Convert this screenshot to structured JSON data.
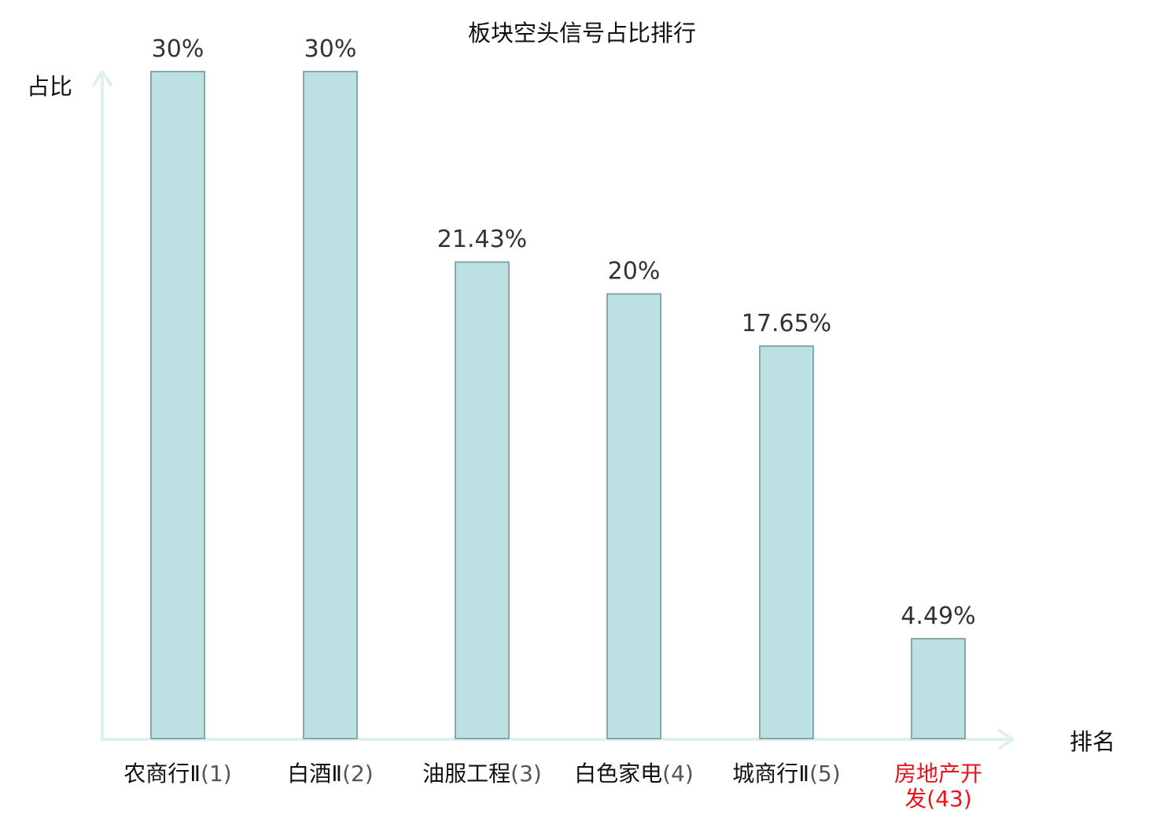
{
  "chart_data": {
    "type": "bar",
    "title": "板块空头信号占比排行",
    "ylabel": "占比",
    "xlabel": "排名",
    "ylim": [
      0,
      30
    ],
    "grid": false,
    "categories": [
      {
        "name": "农商行Ⅱ",
        "rank": "(1)",
        "highlight": false
      },
      {
        "name": "白酒Ⅱ",
        "rank": "(2)",
        "highlight": false
      },
      {
        "name": "油服工程",
        "rank": "(3)",
        "highlight": false
      },
      {
        "name": "白色家电",
        "rank": "(4)",
        "highlight": false
      },
      {
        "name": "城商行Ⅱ",
        "rank": "(5)",
        "highlight": false
      },
      {
        "name": "房地产开发",
        "rank": "(43)",
        "highlight": true
      }
    ],
    "values": [
      30,
      30,
      21.43,
      20,
      17.65,
      4.49
    ],
    "value_labels": [
      "30%",
      "30%",
      "21.43%",
      "20%",
      "17.65%",
      "4.49%"
    ],
    "colors": {
      "bar_fill": "#bde0e2",
      "bar_stroke": "#86a7aa",
      "axis": "#dff1ee",
      "highlight_text": "#e8141c"
    }
  }
}
